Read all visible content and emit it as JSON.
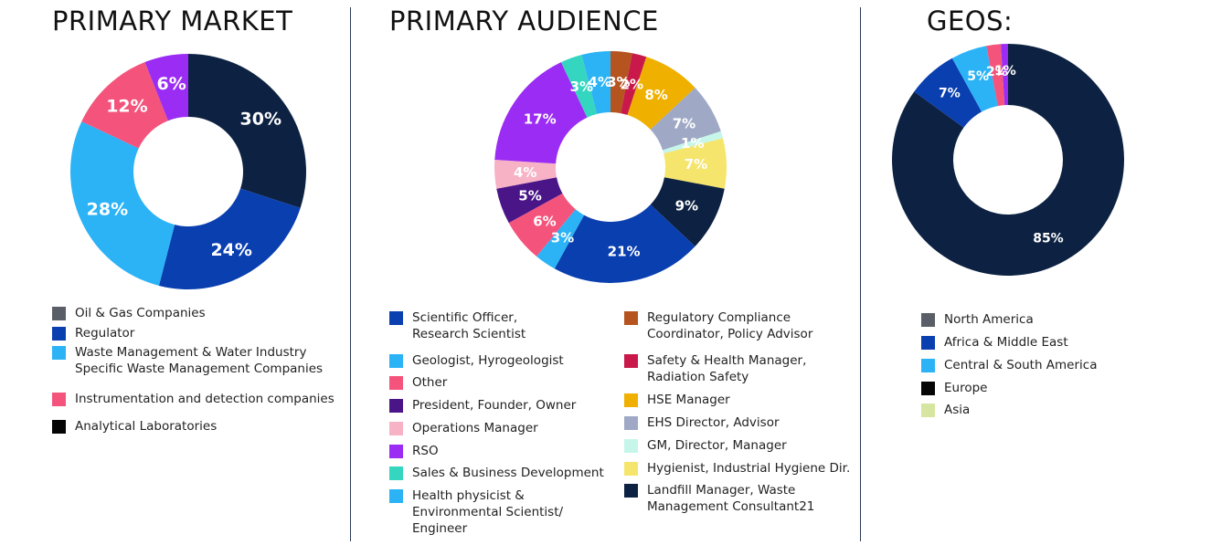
{
  "chart_data": [
    {
      "type": "pie",
      "title": "PRIMARY MARKET",
      "slices": [
        {
          "value": 30,
          "label": "30%",
          "color": "#0d2242"
        },
        {
          "value": 24,
          "label": "24%",
          "color": "#0a3fb0"
        },
        {
          "value": 28,
          "label": "28%",
          "color": "#2bb3f6"
        },
        {
          "value": 12,
          "label": "12%",
          "color": "#f4547c"
        },
        {
          "value": 6,
          "label": "6%",
          "color": "#9b2cf3"
        }
      ],
      "legend": [
        {
          "label": "Oil & Gas Companies",
          "color": "#5a5e66"
        },
        {
          "label": "Regulator",
          "color": "#0a3fb0"
        },
        {
          "label": "Waste Management  & Water Industry\nSpecific Waste Management Companies",
          "color": "#2bb3f6"
        },
        {
          "label": "Instrumentation and detection companies",
          "color": "#f4547c"
        },
        {
          "label": "Analytical Laboratories",
          "color": "#050505"
        }
      ]
    },
    {
      "type": "pie",
      "title": "PRIMARY AUDIENCE",
      "slices": [
        {
          "value": 3,
          "label": "3%",
          "color": "#b5541f"
        },
        {
          "value": 2,
          "label": "2%",
          "color": "#c8194a"
        },
        {
          "value": 8,
          "label": "8%",
          "color": "#efb000"
        },
        {
          "value": 7,
          "label": "7%",
          "color": "#9fa9c6"
        },
        {
          "value": 1,
          "label": "1%",
          "color": "#c6f6ea"
        },
        {
          "value": 7,
          "label": "7%",
          "color": "#f5e56c"
        },
        {
          "value": 9,
          "label": "9%",
          "color": "#0d2242"
        },
        {
          "value": 21,
          "label": "21%",
          "color": "#0a3fb0"
        },
        {
          "value": 3,
          "label": "3%",
          "color": "#2bb3f6"
        },
        {
          "value": 6,
          "label": "6%",
          "color": "#f4547c"
        },
        {
          "value": 5,
          "label": "5%",
          "color": "#4a1587"
        },
        {
          "value": 4,
          "label": "4%",
          "color": "#f8b2c6"
        },
        {
          "value": 17,
          "label": "17%",
          "color": "#9b2cf3"
        },
        {
          "value": 3,
          "label": "3%",
          "color": "#35d6c0"
        },
        {
          "value": 4,
          "label": "4%",
          "color": "#2bb3f6"
        }
      ],
      "legend_left": [
        {
          "label": "Scientific Officer,\nResearch Scientist",
          "color": "#0a3fb0"
        },
        {
          "label": "Geologist, Hyrogeologist",
          "color": "#2bb3f6"
        },
        {
          "label": "Other",
          "color": "#f4547c"
        },
        {
          "label": "President, Founder, Owner",
          "color": "#4a1587"
        },
        {
          "label": "Operations Manager",
          "color": "#f8b2c6"
        },
        {
          "label": "RSO",
          "color": "#9b2cf3"
        },
        {
          "label": "Sales & Business Development",
          "color": "#35d6c0"
        },
        {
          "label": "Health physicist &\nEnvironmental Scientist/\nEngineer",
          "color": "#2bb3f6"
        }
      ],
      "legend_right": [
        {
          "label": "Regulatory Compliance\nCoordinator, Policy Advisor",
          "color": "#b5541f"
        },
        {
          "label": "Safety & Health Manager,\n Radiation Safety",
          "color": "#c8194a"
        },
        {
          "label": "HSE Manager",
          "color": "#efb000"
        },
        {
          "label": "EHS Director, Advisor",
          "color": "#9fa9c6"
        },
        {
          "label": "GM, Director, Manager",
          "color": "#c6f6ea"
        },
        {
          "label": "Hygienist, Industrial Hygiene Dir.",
          "color": "#f5e56c"
        },
        {
          "label": "Landfill Manager, Waste\nManagement Consultant21",
          "color": "#0d2242"
        }
      ]
    },
    {
      "type": "pie",
      "title": "GEOS:",
      "slices": [
        {
          "value": 85,
          "label": "85%",
          "color": "#0d2242"
        },
        {
          "value": 7,
          "label": "7%",
          "color": "#0a3fb0"
        },
        {
          "value": 5,
          "label": "5%",
          "color": "#2bb3f6"
        },
        {
          "value": 2,
          "label": "2%",
          "color": "#f4547c"
        },
        {
          "value": 1,
          "label": "1%",
          "color": "#9b2cf3"
        }
      ],
      "legend": [
        {
          "label": "North America",
          "color": "#5a5e66"
        },
        {
          "label": "Africa & Middle East",
          "color": "#0a3fb0"
        },
        {
          "label": "Central & South America",
          "color": "#2bb3f6"
        },
        {
          "label": "Europe",
          "color": "#050505"
        },
        {
          "label": "Asia",
          "color": "#d6e6a0"
        }
      ]
    }
  ]
}
